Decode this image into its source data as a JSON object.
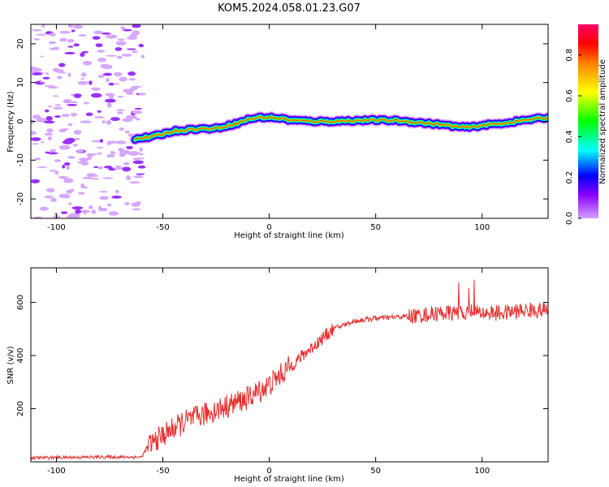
{
  "title": "KOM5.2024.058.01.23.G07",
  "chart_data": [
    {
      "type": "heatmap",
      "xlabel": "Height of straight line (km)",
      "ylabel": "Frequency (Hz)",
      "xlim": [
        -112,
        131
      ],
      "ylim": [
        -25,
        25
      ],
      "xticks": [
        -100,
        -50,
        0,
        50,
        100
      ],
      "yticks": [
        -20,
        -10,
        0,
        10,
        20
      ],
      "ridge": {
        "x": [
          -63,
          -55,
          -45,
          -35,
          -25,
          -15,
          -10,
          -5,
          0,
          5,
          10,
          20,
          30,
          40,
          50,
          60,
          70,
          80,
          90,
          95,
          100,
          110,
          120,
          131
        ],
        "y": [
          -4.5,
          -4.0,
          -2.5,
          -2.0,
          -1.8,
          -0.5,
          0.5,
          1.0,
          1.0,
          0.8,
          0.3,
          0.0,
          0.0,
          0.2,
          0.3,
          0.2,
          -0.3,
          -0.8,
          -1.5,
          -1.5,
          -1.0,
          -0.5,
          0.3,
          1.0
        ]
      },
      "noise_region_x": [
        -112,
        -63
      ],
      "colorbar": {
        "label": "Normalized spectral amplitude",
        "ticks": [
          "0.0",
          "0.2",
          "0.4",
          "0.6",
          "0.8"
        ]
      }
    },
    {
      "type": "line",
      "xlabel": "Height of straight line (km)",
      "ylabel": "SNR (v/v)",
      "xlim": [
        -112,
        131
      ],
      "ylim": [
        0,
        730
      ],
      "xticks": [
        -100,
        -50,
        0,
        50,
        100
      ],
      "yticks": [
        200,
        400,
        600
      ],
      "series": [
        {
          "color": "#e53030",
          "x": [
            -112,
            -80,
            -60,
            -57,
            -50,
            -40,
            -30,
            -20,
            -10,
            0,
            10,
            20,
            30,
            40,
            50,
            60,
            70,
            80,
            90,
            95,
            100,
            110,
            120,
            131
          ],
          "y": [
            15,
            18,
            18,
            60,
            100,
            150,
            180,
            210,
            240,
            290,
            360,
            430,
            500,
            530,
            540,
            545,
            550,
            560,
            560,
            570,
            560,
            560,
            570,
            570
          ]
        }
      ]
    }
  ]
}
